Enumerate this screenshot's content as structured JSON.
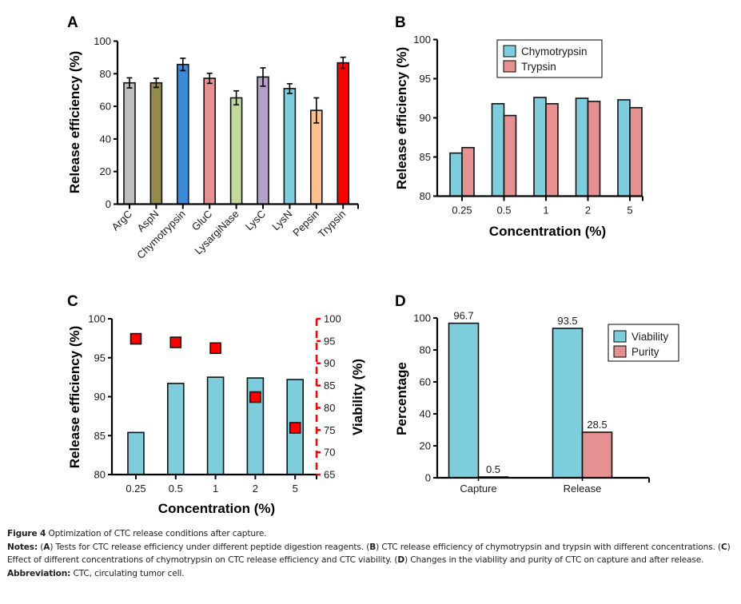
{
  "chart_data": [
    {
      "panel": "A",
      "type": "bar",
      "title": "",
      "xlabel": "",
      "ylabel": "Release efficiency (%)",
      "ylim": [
        0,
        100
      ],
      "yticks": [
        "0",
        "20",
        "40",
        "60",
        "80",
        "100"
      ],
      "yticks_values": [
        0,
        20,
        40,
        60,
        80,
        100
      ],
      "categories": [
        "ArgC",
        "AspN",
        "Chymotrypsin",
        "GluC",
        "LysargiNase",
        "LysC",
        "LysN",
        "Pepsin",
        "Trypsin"
      ],
      "values": [
        74.4,
        74.4,
        85.7,
        77.2,
        65.2,
        78.0,
        70.9,
        57.5,
        86.7
      ],
      "errors": [
        3.1,
        2.8,
        3.8,
        3.1,
        4.3,
        5.6,
        3.0,
        7.7,
        3.4
      ],
      "colors": [
        "#bfbfbf",
        "#938a4b",
        "#3c8ad9",
        "#e59192",
        "#c3d99a",
        "#b5a0c9",
        "#7ecddd",
        "#fdbf8b",
        "#ff0000"
      ],
      "grid": false
    },
    {
      "panel": "B",
      "type": "bar",
      "title": "",
      "xlabel": "Concentration (%)",
      "ylabel": "Release efficiency (%)",
      "ylim": [
        80,
        100
      ],
      "yticks": [
        "80",
        "85",
        "90",
        "95",
        "100"
      ],
      "yticks_values": [
        80,
        85,
        90,
        95,
        100
      ],
      "categories": [
        "0.25",
        "0.5",
        "1",
        "2",
        "5"
      ],
      "series": [
        {
          "name": "Chymotrypsin",
          "color": "#7ecddd",
          "values": [
            85.5,
            91.8,
            92.6,
            92.5,
            92.3
          ]
        },
        {
          "name": "Trypsin",
          "color": "#e59192",
          "values": [
            86.2,
            90.3,
            91.8,
            92.1,
            91.3
          ]
        }
      ],
      "legend": "top-center",
      "grid": false
    },
    {
      "panel": "C",
      "type": "bar",
      "title": "",
      "xlabel": "Concentration (%)",
      "ylabel": "Release efficiency (%)",
      "ylabel_right": "Viability (%)",
      "ylim": [
        80,
        100
      ],
      "ylim_right": [
        65,
        100
      ],
      "yticks": [
        "80",
        "85",
        "90",
        "95",
        "100"
      ],
      "yticks_values": [
        80,
        85,
        90,
        95,
        100
      ],
      "yticks_right": [
        "65",
        "70",
        "75",
        "80",
        "85",
        "90",
        "95",
        "100"
      ],
      "yticks_right_values": [
        65,
        70,
        75,
        80,
        85,
        90,
        95,
        100
      ],
      "categories": [
        "0.25",
        "0.5",
        "1",
        "2",
        "5"
      ],
      "series": [
        {
          "name": "Release efficiency",
          "type": "bar",
          "axis": "left",
          "color": "#7ecddd",
          "values": [
            85.4,
            91.7,
            92.5,
            92.4,
            92.2
          ]
        },
        {
          "name": "Viability",
          "type": "scatter",
          "marker": "square",
          "axis": "right",
          "color": "#ff0000",
          "values": [
            95.5,
            94.7,
            93.4,
            82.4,
            75.5
          ]
        }
      ],
      "right_axis_color": "#ff0000",
      "right_axis_style": "dashed",
      "grid": false
    },
    {
      "panel": "D",
      "type": "bar",
      "title": "",
      "xlabel": "",
      "ylabel": "Percentage",
      "ylim": [
        0,
        100
      ],
      "yticks": [
        "0",
        "20",
        "40",
        "60",
        "80",
        "100"
      ],
      "yticks_values": [
        0,
        20,
        40,
        60,
        80,
        100
      ],
      "categories": [
        "Capture",
        "Release"
      ],
      "series": [
        {
          "name": "Viability",
          "color": "#7ecddd",
          "values": [
            96.7,
            93.5
          ],
          "labels": [
            "96.7",
            "93.5"
          ]
        },
        {
          "name": "Purity",
          "color": "#e59192",
          "values": [
            0.5,
            28.5
          ],
          "labels": [
            "0.5",
            "28.5"
          ]
        }
      ],
      "legend": "right",
      "grid": false
    }
  ],
  "panel_labels": [
    "A",
    "B",
    "C",
    "D"
  ],
  "caption": {
    "figure_label": "Figure 4",
    "title": " Optimization of CTC release conditions after capture.",
    "notes_label": "Notes:",
    "notes": [
      {
        "tag": "A",
        "text": " Tests for CTC release efficiency under different peptide digestion reagents. "
      },
      {
        "tag": "B",
        "text": " CTC release efficiency of chymotrypsin and trypsin with different concentrations. "
      },
      {
        "tag": "C",
        "text": " Effect of different concentrations of chymotrypsin on CTC release efficiency and CTC viability. "
      },
      {
        "tag": "D",
        "text": " Changes in the viability and purity of CTC on capture and after release."
      }
    ],
    "abbreviation_label": "Abbreviation:",
    "abbreviation_text": " CTC, circulating tumor cell."
  }
}
